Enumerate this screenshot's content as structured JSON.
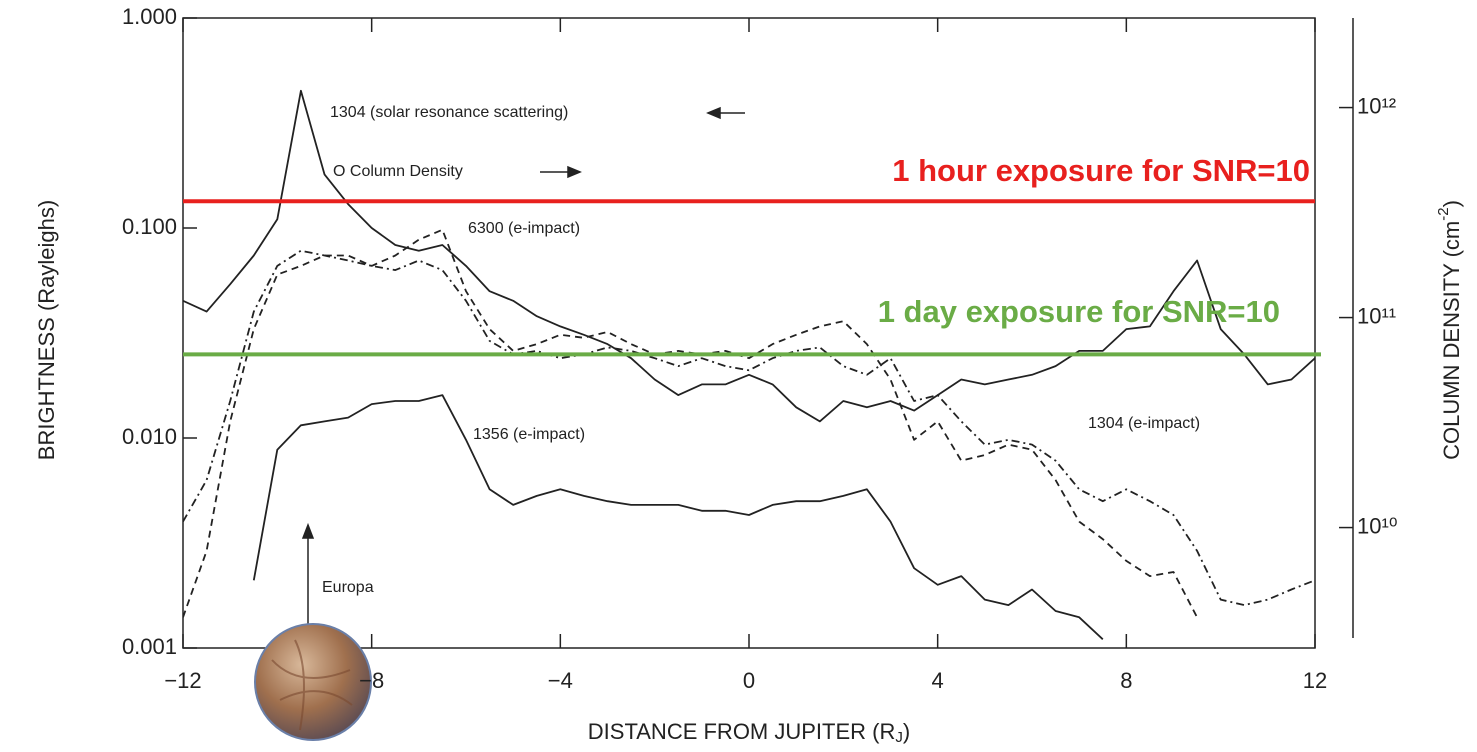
{
  "chart_data": {
    "type": "line",
    "xlabel": {
      "text": "DISTANCE FROM JUPITER  (R",
      "sub": "J",
      "close": ")"
    },
    "ylabel": "BRIGHTNESS  (Rayleighs)",
    "y2label": {
      "text": "COLUMN DENSITY  (cm",
      "sup": "-2",
      "close": ")"
    },
    "xlim": [
      -12,
      12
    ],
    "xticks": [
      -12,
      -8,
      -4,
      0,
      4,
      8,
      12
    ],
    "ylim": [
      0.001,
      1
    ],
    "yscale": "log",
    "yticks": [
      {
        "value": 1,
        "label": "1.000"
      },
      {
        "value": 0.1,
        "label": "0.100"
      },
      {
        "value": 0.01,
        "label": "0.010"
      },
      {
        "value": 0.001,
        "label": "0.001"
      }
    ],
    "y2lim": [
      2670000000.0,
      2670000000000.0
    ],
    "y2ticks": [
      {
        "value": 1000000000000.0,
        "label": "10¹²"
      },
      {
        "value": 100000000000.0,
        "label": "10¹¹"
      },
      {
        "value": 10000000000.0,
        "label": "10¹⁰"
      }
    ],
    "x": [
      -12,
      -11.5,
      -11,
      -10.5,
      -10,
      -9.5,
      -9,
      -8.5,
      -8,
      -7.5,
      -7,
      -6.5,
      -6,
      -5.5,
      -5,
      -4.5,
      -4,
      -3.5,
      -3,
      -2.5,
      -2,
      -1.5,
      -1,
      -0.5,
      0,
      0.5,
      1,
      1.5,
      2,
      2.5,
      3,
      3.5,
      4,
      4.5,
      5,
      5.5,
      6,
      6.5,
      7,
      7.5,
      8,
      8.5,
      9,
      9.5,
      10,
      10.5,
      11,
      11.5,
      12
    ],
    "series": [
      {
        "color": "#222222",
        "dash": "solid",
        "values": [
          0.045,
          0.04,
          0.054,
          0.074,
          0.11,
          0.45,
          0.18,
          0.13,
          0.1,
          0.083,
          0.078,
          0.083,
          0.066,
          0.05,
          0.045,
          0.038,
          0.034,
          0.031,
          0.028,
          0.024,
          0.019,
          0.016,
          0.018,
          0.018,
          0.02,
          0.018,
          0.014,
          0.012,
          0.015,
          0.014,
          0.015,
          0.0135,
          0.016,
          0.019,
          0.018,
          0.019,
          0.02,
          0.022,
          0.026,
          0.026,
          0.033,
          0.034,
          0.05,
          0.07,
          0.033,
          0.025,
          0.018,
          0.019,
          0.024
        ]
      },
      {
        "color": "#222222",
        "dash": "solid",
        "values": [
          null,
          null,
          null,
          0.0021,
          0.0088,
          0.0115,
          0.012,
          0.0125,
          0.0145,
          0.015,
          0.015,
          0.016,
          0.0098,
          0.0057,
          0.0048,
          0.0053,
          0.0057,
          0.0053,
          0.005,
          0.0048,
          0.0048,
          0.0048,
          0.0045,
          0.0045,
          0.0043,
          0.0048,
          0.005,
          0.005,
          0.0053,
          0.0057,
          0.004,
          0.0024,
          0.002,
          0.0022,
          0.0017,
          0.0016,
          0.0019,
          0.0015,
          0.0014,
          0.0011,
          null,
          null,
          null,
          null,
          null,
          null,
          null,
          null,
          null
        ]
      },
      {
        "color": "#222222",
        "dash": "dashed",
        "values": [
          0.0014,
          0.0029,
          0.012,
          0.033,
          0.06,
          0.066,
          0.074,
          0.074,
          0.066,
          0.074,
          0.088,
          0.098,
          0.05,
          0.033,
          0.026,
          0.028,
          0.031,
          0.03,
          0.032,
          0.028,
          0.025,
          0.026,
          0.025,
          0.026,
          0.024,
          0.028,
          0.031,
          0.034,
          0.036,
          0.028,
          0.019,
          0.0098,
          0.012,
          0.0078,
          0.0083,
          0.0093,
          0.0088,
          0.0063,
          0.004,
          0.0033,
          0.0026,
          0.0022,
          0.0023,
          0.0014,
          null,
          null,
          null,
          null,
          null
        ]
      },
      {
        "color": "#222222",
        "dash": "dashdot",
        "values": [
          0.004,
          0.0063,
          0.015,
          0.04,
          0.066,
          0.078,
          0.074,
          0.07,
          0.066,
          0.063,
          0.07,
          0.063,
          0.045,
          0.029,
          0.025,
          0.026,
          0.024,
          0.025,
          0.027,
          0.026,
          0.024,
          0.022,
          0.024,
          0.022,
          0.021,
          0.024,
          0.026,
          0.027,
          0.022,
          0.02,
          0.024,
          0.015,
          0.016,
          0.012,
          0.0093,
          0.0098,
          0.0093,
          0.0078,
          0.0057,
          0.005,
          0.0057,
          0.005,
          0.0043,
          0.0029,
          0.0017,
          0.0016,
          0.0017,
          0.0019,
          0.0021
        ]
      }
    ],
    "reference_lines": [
      {
        "value": 0.134,
        "label": "1 hour exposure for SNR=10",
        "color": "#e8201e"
      },
      {
        "value": 0.025,
        "label": "1 day exposure for SNR=10",
        "color": "#6aac46"
      }
    ],
    "annotations": [
      "1304  (solar resonance scattering)",
      "O Column Density",
      "6300  (e-impact)",
      "1356  (e-impact)",
      "1304  (e-impact)",
      "Europa"
    ]
  }
}
